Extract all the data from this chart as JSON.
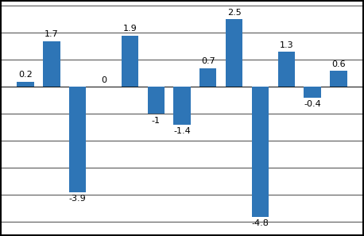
{
  "values": [
    0.2,
    1.7,
    -3.9,
    0.0,
    1.9,
    -1.0,
    -1.4,
    0.7,
    2.5,
    -4.8,
    1.3,
    -0.4,
    0.6
  ],
  "bar_color": "#2E75B6",
  "bar_edge_color": "#2E75B6",
  "ylim": [
    -5.5,
    3.2
  ],
  "yticks": [
    -5,
    -4,
    -3,
    -2,
    -1,
    0,
    1,
    2,
    3
  ],
  "background_color": "#ffffff",
  "grid_color": "#000000",
  "label_fontsize": 8,
  "bar_width": 0.65,
  "border_color": "#000000",
  "border_width": 1.5
}
